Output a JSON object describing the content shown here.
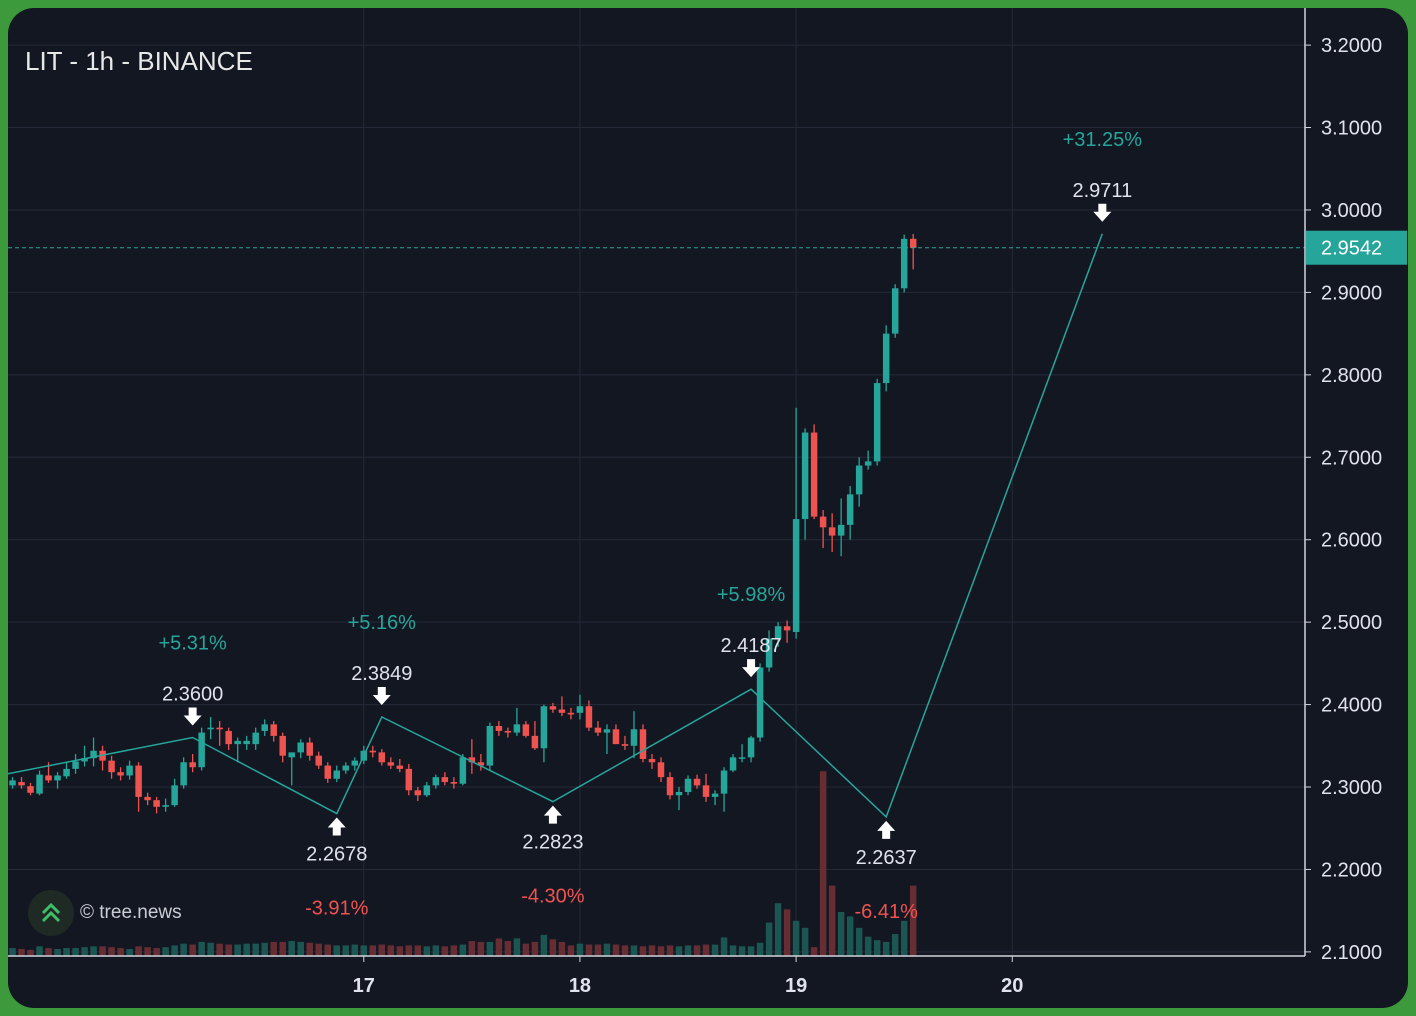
{
  "header": {
    "title": "LIT - 1h - BINANCE"
  },
  "watermark": {
    "text": "© tree.news",
    "icon": "tree-news-chevrons-icon"
  },
  "colors": {
    "background": "#131722",
    "up": "#26a69a",
    "down": "#ef5350",
    "grid": "#242a38",
    "text": "#e0e3eb",
    "frame": "#3c9a3c"
  },
  "chart_data": {
    "type": "candlestick",
    "symbol": "LIT",
    "interval": "1h",
    "exchange": "BINANCE",
    "x_range": [
      -39.5,
      104.5
    ],
    "ylim": [
      2.095,
      3.245
    ],
    "y_ticks": [
      2.1,
      2.2,
      2.3,
      2.4,
      2.5,
      2.6,
      2.7,
      2.8,
      2.9,
      3.0,
      3.1,
      3.2
    ],
    "y_tick_labels": [
      "2.1000",
      "2.2000",
      "2.3000",
      "2.4000",
      "2.5000",
      "2.6000",
      "2.7000",
      "2.8000",
      "2.9000",
      "3.0000",
      "3.1000",
      "3.2000"
    ],
    "x_ticks": [
      {
        "label": "17",
        "hour": 0
      },
      {
        "label": "18",
        "hour": 24
      },
      {
        "label": "19",
        "hour": 48
      },
      {
        "label": "20",
        "hour": 72
      }
    ],
    "last_price": {
      "value": 2.9542,
      "label": "2.9542"
    },
    "candles": [
      [
        2.284,
        2.305,
        2.285,
        2.303
      ],
      [
        2.302,
        2.312,
        2.298,
        2.308
      ],
      [
        2.306,
        2.312,
        2.298,
        2.302
      ],
      [
        2.301,
        2.305,
        2.29,
        2.293
      ],
      [
        2.292,
        2.32,
        2.29,
        2.315
      ],
      [
        2.314,
        2.33,
        2.305,
        2.308
      ],
      [
        2.308,
        2.318,
        2.298,
        2.314
      ],
      [
        2.313,
        2.33,
        2.31,
        2.322
      ],
      [
        2.322,
        2.34,
        2.316,
        2.331
      ],
      [
        2.331,
        2.35,
        2.325,
        2.335
      ],
      [
        2.335,
        2.36,
        2.325,
        2.344
      ],
      [
        2.344,
        2.35,
        2.32,
        2.332
      ],
      [
        2.332,
        2.338,
        2.31,
        2.318
      ],
      [
        2.318,
        2.324,
        2.308,
        2.314
      ],
      [
        2.314,
        2.332,
        2.309,
        2.326
      ],
      [
        2.326,
        2.33,
        2.27,
        2.288
      ],
      [
        2.288,
        2.293,
        2.278,
        2.284
      ],
      [
        2.284,
        2.288,
        2.268,
        2.276
      ],
      [
        2.276,
        2.286,
        2.27,
        2.278
      ],
      [
        2.278,
        2.31,
        2.276,
        2.302
      ],
      [
        2.302,
        2.336,
        2.298,
        2.33
      ],
      [
        2.33,
        2.34,
        2.318,
        2.324
      ],
      [
        2.324,
        2.372,
        2.32,
        2.366
      ],
      [
        2.37,
        2.385,
        2.358,
        2.372
      ],
      [
        2.372,
        2.38,
        2.35,
        2.37
      ],
      [
        2.368,
        2.372,
        2.345,
        2.352
      ],
      [
        2.352,
        2.36,
        2.33,
        2.356
      ],
      [
        2.352,
        2.362,
        2.345,
        2.356
      ],
      [
        2.352,
        2.372,
        2.345,
        2.366
      ],
      [
        2.368,
        2.382,
        2.362,
        2.376
      ],
      [
        2.376,
        2.38,
        2.355,
        2.362
      ],
      [
        2.362,
        2.366,
        2.33,
        2.338
      ],
      [
        2.336,
        2.342,
        2.302,
        2.342
      ],
      [
        2.342,
        2.358,
        2.335,
        2.354
      ],
      [
        2.354,
        2.36,
        2.332,
        2.338
      ],
      [
        2.338,
        2.343,
        2.322,
        2.326
      ],
      [
        2.326,
        2.33,
        2.305,
        2.31
      ],
      [
        2.31,
        2.326,
        2.306,
        2.32
      ],
      [
        2.32,
        2.33,
        2.316,
        2.326
      ],
      [
        2.326,
        2.336,
        2.32,
        2.332
      ],
      [
        2.332,
        2.35,
        2.328,
        2.344
      ],
      [
        2.344,
        2.35,
        2.336,
        2.342
      ],
      [
        2.342,
        2.346,
        2.326,
        2.33
      ],
      [
        2.33,
        2.336,
        2.322,
        2.326
      ],
      [
        2.326,
        2.334,
        2.318,
        2.322
      ],
      [
        2.322,
        2.328,
        2.29,
        2.296
      ],
      [
        2.296,
        2.3,
        2.283,
        2.29
      ],
      [
        2.29,
        2.306,
        2.288,
        2.302
      ],
      [
        2.302,
        2.315,
        2.298,
        2.312
      ],
      [
        2.312,
        2.318,
        2.302,
        2.306
      ],
      [
        2.306,
        2.312,
        2.298,
        2.304
      ],
      [
        2.304,
        2.34,
        2.302,
        2.336
      ],
      [
        2.336,
        2.358,
        2.316,
        2.33
      ],
      [
        2.33,
        2.34,
        2.32,
        2.326
      ],
      [
        2.326,
        2.378,
        2.32,
        2.374
      ],
      [
        2.374,
        2.38,
        2.362,
        2.368
      ],
      [
        2.368,
        2.372,
        2.36,
        2.366
      ],
      [
        2.366,
        2.396,
        2.362,
        2.376
      ],
      [
        2.376,
        2.38,
        2.36,
        2.362
      ],
      [
        2.362,
        2.38,
        2.345,
        2.347
      ],
      [
        2.347,
        2.4,
        2.33,
        2.398
      ],
      [
        2.398,
        2.402,
        2.39,
        2.394
      ],
      [
        2.394,
        2.41,
        2.386,
        2.39
      ],
      [
        2.39,
        2.396,
        2.382,
        2.388
      ],
      [
        2.39,
        2.412,
        2.382,
        2.398
      ],
      [
        2.398,
        2.405,
        2.368,
        2.372
      ],
      [
        2.372,
        2.38,
        2.362,
        2.366
      ],
      [
        2.366,
        2.376,
        2.34,
        2.37
      ],
      [
        2.37,
        2.376,
        2.358,
        2.352
      ],
      [
        2.352,
        2.362,
        2.345,
        2.35
      ],
      [
        2.35,
        2.392,
        2.335,
        2.37
      ],
      [
        2.37,
        2.376,
        2.33,
        2.334
      ],
      [
        2.334,
        2.34,
        2.322,
        2.33
      ],
      [
        2.33,
        2.336,
        2.306,
        2.312
      ],
      [
        2.312,
        2.318,
        2.285,
        2.29
      ],
      [
        2.29,
        2.3,
        2.272,
        2.294
      ],
      [
        2.294,
        2.314,
        2.29,
        2.31
      ],
      [
        2.31,
        2.315,
        2.298,
        2.302
      ],
      [
        2.302,
        2.316,
        2.282,
        2.288
      ],
      [
        2.288,
        2.296,
        2.278,
        2.292
      ],
      [
        2.292,
        2.324,
        2.27,
        2.32
      ],
      [
        2.32,
        2.34,
        2.318,
        2.336
      ],
      [
        2.336,
        2.352,
        2.33,
        2.336
      ],
      [
        2.336,
        2.362,
        2.33,
        2.36
      ],
      [
        2.36,
        2.45,
        2.355,
        2.445
      ],
      [
        2.445,
        2.49,
        2.44,
        2.48
      ],
      [
        2.48,
        2.5,
        2.47,
        2.495
      ],
      [
        2.495,
        2.502,
        2.475,
        2.49
      ],
      [
        2.488,
        2.76,
        2.48,
        2.625
      ],
      [
        2.625,
        2.735,
        2.6,
        2.73
      ],
      [
        2.73,
        2.74,
        2.625,
        2.628
      ],
      [
        2.628,
        2.636,
        2.59,
        2.615
      ],
      [
        2.615,
        2.632,
        2.585,
        2.605
      ],
      [
        2.605,
        2.65,
        2.58,
        2.618
      ],
      [
        2.618,
        2.665,
        2.6,
        2.655
      ],
      [
        2.655,
        2.7,
        2.64,
        2.69
      ],
      [
        2.69,
        2.708,
        2.685,
        2.695
      ],
      [
        2.695,
        2.795,
        2.69,
        2.79
      ],
      [
        2.79,
        2.86,
        2.78,
        2.85
      ],
      [
        2.85,
        2.91,
        2.845,
        2.905
      ],
      [
        2.905,
        2.97,
        2.9,
        2.965
      ],
      [
        2.965,
        2.971,
        2.928,
        2.954
      ]
    ],
    "volumes": [
      10,
      9,
      8,
      7,
      11,
      9,
      8,
      9,
      9,
      10,
      11,
      11,
      10,
      9,
      8,
      11,
      10,
      9,
      10,
      12,
      14,
      13,
      16,
      15,
      14,
      13,
      13,
      14,
      14,
      15,
      16,
      16,
      17,
      16,
      15,
      14,
      13,
      12,
      12,
      13,
      12,
      12,
      13,
      12,
      11,
      12,
      12,
      11,
      12,
      11,
      12,
      13,
      17,
      16,
      16,
      20,
      17,
      20,
      14,
      16,
      24,
      19,
      16,
      12,
      14,
      13,
      13,
      14,
      13,
      12,
      12,
      11,
      12,
      11,
      12,
      11,
      12,
      12,
      13,
      13,
      21,
      12,
      11,
      11,
      15,
      38,
      60,
      53,
      40,
      32,
      10,
      210,
      80,
      50,
      45,
      32,
      22,
      18,
      16,
      25,
      40,
      80,
      70,
      60,
      15
    ]
  },
  "annotations": [
    {
      "kind": "high",
      "hour": -19,
      "price": 2.36,
      "label": "2.3600",
      "change": "+5.31%"
    },
    {
      "kind": "low",
      "hour": -3,
      "price": 2.2678,
      "label": "2.2678",
      "change": "-3.91%"
    },
    {
      "kind": "high",
      "hour": 2,
      "price": 2.3849,
      "label": "2.3849",
      "change": "+5.16%"
    },
    {
      "kind": "low",
      "hour": 21,
      "price": 2.2823,
      "label": "2.2823",
      "change": "-4.30%"
    },
    {
      "kind": "high",
      "hour": 43,
      "price": 2.4187,
      "label": "2.4187",
      "change": "+5.98%"
    },
    {
      "kind": "low",
      "hour": 58,
      "price": 2.2637,
      "label": "2.2637",
      "change": "-6.41%"
    },
    {
      "kind": "high",
      "hour": 82,
      "price": 2.9711,
      "label": "2.9711",
      "change": "+31.25%"
    }
  ],
  "zigzag_points": [
    [
      -40,
      2.315
    ],
    [
      -19,
      2.36
    ],
    [
      -3,
      2.2678
    ],
    [
      2,
      2.3849
    ],
    [
      21,
      2.2823
    ],
    [
      43,
      2.4187
    ],
    [
      58,
      2.2637
    ],
    [
      82,
      2.9711
    ]
  ]
}
